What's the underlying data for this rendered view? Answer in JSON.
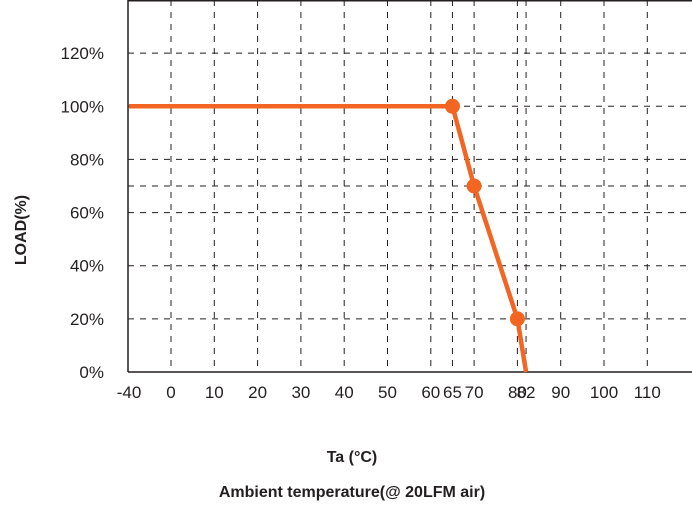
{
  "chart_data": {
    "type": "line",
    "title": "",
    "xlabel": "Ta (°C)",
    "xlabel_sub": "Ambient temperature(@ 20LFM air)",
    "ylabel": "LOAD(%)",
    "x_ticks": [
      -40,
      0,
      10,
      20,
      30,
      40,
      50,
      60,
      65,
      70,
      80,
      82,
      90,
      100,
      110
    ],
    "x_tick_labels": [
      "-40",
      "0",
      "10",
      "20",
      "30",
      "40",
      "50",
      "60",
      "65",
      "70",
      "80",
      "82",
      "90",
      "100",
      "110"
    ],
    "y_ticks": [
      0,
      20,
      40,
      60,
      70,
      80,
      100,
      120
    ],
    "y_tick_labels": [
      "0%",
      "20%",
      "40%",
      "60%",
      "",
      "80%",
      "100%",
      "120%"
    ],
    "ylim": [
      0,
      140
    ],
    "grid": true,
    "series": [
      {
        "color": "#f26522",
        "x": [
          -40,
          65,
          70,
          80,
          82
        ],
        "y": [
          100,
          100,
          70,
          20,
          0
        ],
        "markers_at_x": [
          65,
          70,
          80
        ]
      }
    ]
  }
}
